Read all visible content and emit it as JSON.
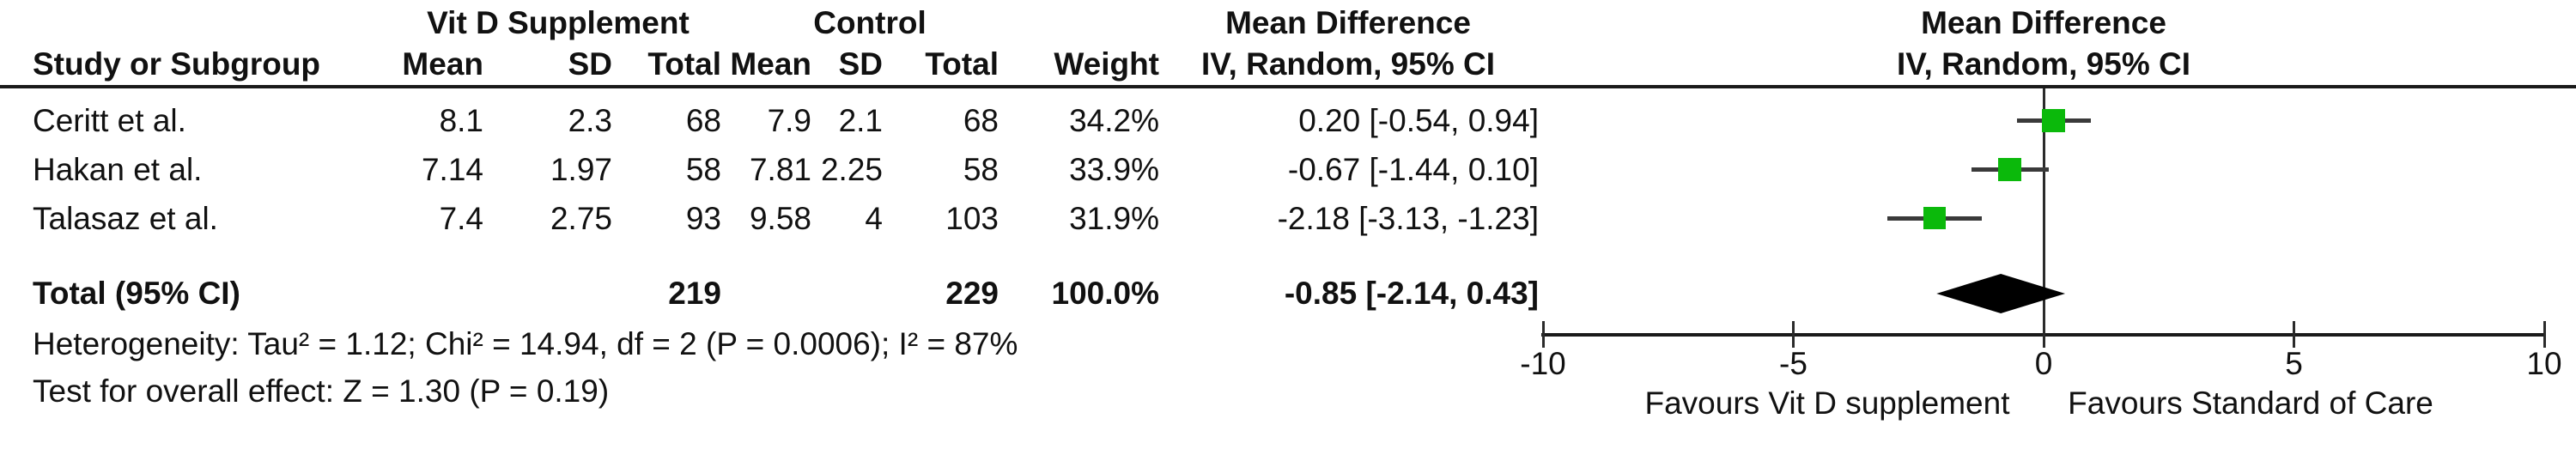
{
  "table": {
    "group_headers": {
      "treatment": "Vit D Supplement",
      "control": "Control",
      "md_stats": "Mean Difference",
      "md_plot": "Mean Difference"
    },
    "col_headers": {
      "study": "Study or Subgroup",
      "mean": "Mean",
      "sd": "SD",
      "total": "Total",
      "weight": "Weight",
      "iv_stats": "IV, Random, 95% CI",
      "iv_plot": "IV, Random, 95% CI"
    },
    "studies": [
      {
        "name": "Ceritt et al.",
        "mean1": "8.1",
        "sd1": "2.3",
        "total1": "68",
        "mean2": "7.9",
        "sd2": "2.1",
        "total2": "68",
        "weight": "34.2%",
        "ci": "0.20 [-0.54, 0.94]"
      },
      {
        "name": "Hakan et al.",
        "mean1": "7.14",
        "sd1": "1.97",
        "total1": "58",
        "mean2": "7.81",
        "sd2": "2.25",
        "total2": "58",
        "weight": "33.9%",
        "ci": "-0.67 [-1.44, 0.10]"
      },
      {
        "name": "Talasaz et al.",
        "mean1": "7.4",
        "sd1": "2.75",
        "total1": "93",
        "mean2": "9.58",
        "sd2": "4",
        "total2": "103",
        "weight": "31.9%",
        "ci": "-2.18 [-3.13, -1.23]"
      }
    ],
    "total_row": {
      "label": "Total (95% CI)",
      "total1": "219",
      "total2": "229",
      "weight": "100.0%",
      "ci": "-0.85 [-2.14, 0.43]"
    }
  },
  "footnotes": {
    "heterogeneity": "Heterogeneity: Tau² = 1.12; Chi² = 14.94, df = 2 (P = 0.0006); I² = 87%",
    "overall_effect": "Test for overall effect: Z = 1.30 (P = 0.19)"
  },
  "chart_data": {
    "type": "forest",
    "title": "Mean Difference",
    "method": "IV, Random, 95% CI",
    "x_axis": {
      "min": -10,
      "max": 10,
      "ticks": [
        -10,
        -5,
        0,
        5,
        10
      ]
    },
    "footer_labels": {
      "left": "Favours Vit D supplement",
      "right": "Favours Standard of Care"
    },
    "marker_color": "#0bb90b",
    "diamond_color": "#000000",
    "studies": [
      {
        "name": "Ceritt et al.",
        "md": 0.2,
        "ci_low": -0.54,
        "ci_high": 0.94,
        "weight_pct": 34.2
      },
      {
        "name": "Hakan et al.",
        "md": -0.67,
        "ci_low": -1.44,
        "ci_high": 0.1,
        "weight_pct": 33.9
      },
      {
        "name": "Talasaz et al.",
        "md": -2.18,
        "ci_low": -3.13,
        "ci_high": -1.23,
        "weight_pct": 31.9
      }
    ],
    "total": {
      "md": -0.85,
      "ci_low": -2.14,
      "ci_high": 0.43,
      "weight_pct": 100.0
    }
  }
}
